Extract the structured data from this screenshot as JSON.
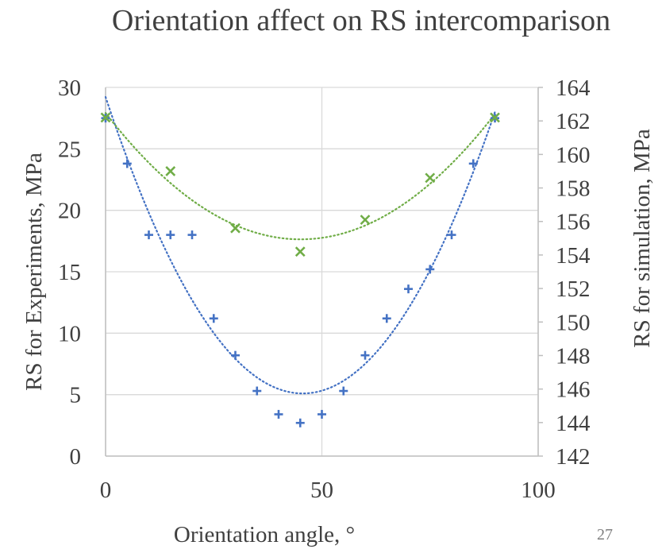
{
  "slide_number": "27",
  "chart_data": {
    "type": "scatter",
    "title": "Orientation affect on RS intercomparison",
    "xlabel": "Orientation angle, °",
    "ylabel": "RS for Experiments, MPa",
    "y2label": "RS for simulation, MPa",
    "xlim": [
      0,
      100
    ],
    "ylim": [
      0,
      30
    ],
    "y2lim": [
      142,
      164
    ],
    "x_ticks": [
      "0",
      "50",
      "100"
    ],
    "y_ticks": [
      "0",
      "5",
      "10",
      "15",
      "20",
      "25",
      "30"
    ],
    "y2_ticks": [
      "142",
      "144",
      "146",
      "148",
      "150",
      "152",
      "154",
      "156",
      "158",
      "160",
      "162",
      "164"
    ],
    "grid": true,
    "legend": "none",
    "series": [
      {
        "axis": "left",
        "marker": "plus",
        "trendline": "polynomial",
        "color": "#4472c4",
        "x": [
          0,
          5,
          10,
          15,
          20,
          25,
          30,
          35,
          40,
          45,
          50,
          55,
          60,
          65,
          70,
          75,
          80,
          85,
          90
        ],
        "y": [
          27.5,
          23.8,
          18.0,
          18.0,
          18.0,
          11.2,
          8.2,
          5.3,
          3.4,
          2.7,
          3.4,
          5.3,
          8.2,
          11.2,
          13.6,
          15.2,
          18.0,
          23.8,
          27.5
        ]
      },
      {
        "axis": "right",
        "marker": "x",
        "trendline": "polynomial",
        "color": "#70ad47",
        "x": [
          0,
          15,
          30,
          45,
          60,
          75,
          90
        ],
        "y": [
          162.2,
          159.0,
          155.6,
          154.2,
          156.1,
          158.6,
          162.2
        ]
      }
    ]
  }
}
